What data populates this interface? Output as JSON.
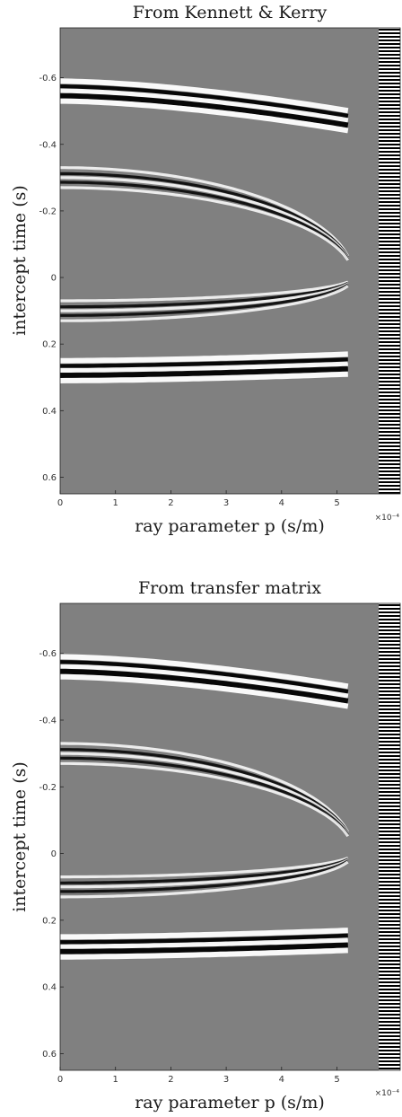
{
  "chart_data": [
    {
      "type": "heatmap",
      "title": "From Kennett & Kerry",
      "xlabel": "ray parameter p (s/m)",
      "ylabel": "intercept time (s)",
      "x_multiplier": "×10⁻⁴",
      "xlim": [
        0,
        5.3
      ],
      "ylim": [
        -0.75,
        0.65
      ],
      "y_reversed": true,
      "x_ticks": [
        0,
        1,
        2,
        3,
        4,
        5
      ],
      "y_ticks": [
        -0.6,
        -0.4,
        -0.2,
        0,
        0.2,
        0.4,
        0.6
      ],
      "colormap": "gray",
      "grid": false,
      "events": [
        {
          "kind": "band",
          "tau0": -0.56,
          "tau_end": -0.47,
          "p_end": 5.25
        },
        {
          "kind": "hyperbola",
          "tau0": -0.3,
          "p_apex": 5.3
        },
        {
          "kind": "hyperbola",
          "tau0": 0.1,
          "p_apex": 5.3
        },
        {
          "kind": "band",
          "tau0": 0.28,
          "tau_end": 0.26,
          "p_end": 5.25
        }
      ]
    },
    {
      "type": "heatmap",
      "title": "From transfer matrix",
      "xlabel": "ray parameter p (s/m)",
      "ylabel": "intercept time (s)",
      "x_multiplier": "×10⁻⁴",
      "xlim": [
        0,
        5.3
      ],
      "ylim": [
        -0.75,
        0.65
      ],
      "y_reversed": true,
      "x_ticks": [
        0,
        1,
        2,
        3,
        4,
        5
      ],
      "y_ticks": [
        -0.6,
        -0.4,
        -0.2,
        0,
        0.2,
        0.4,
        0.6
      ],
      "colormap": "gray",
      "grid": false,
      "events": [
        {
          "kind": "band",
          "tau0": -0.56,
          "tau_end": -0.47,
          "p_end": 5.25
        },
        {
          "kind": "hyperbola",
          "tau0": -0.3,
          "p_apex": 5.3
        },
        {
          "kind": "hyperbola",
          "tau0": 0.1,
          "p_apex": 5.3
        },
        {
          "kind": "band",
          "tau0": 0.28,
          "tau_end": 0.26,
          "p_end": 5.25
        }
      ]
    }
  ]
}
